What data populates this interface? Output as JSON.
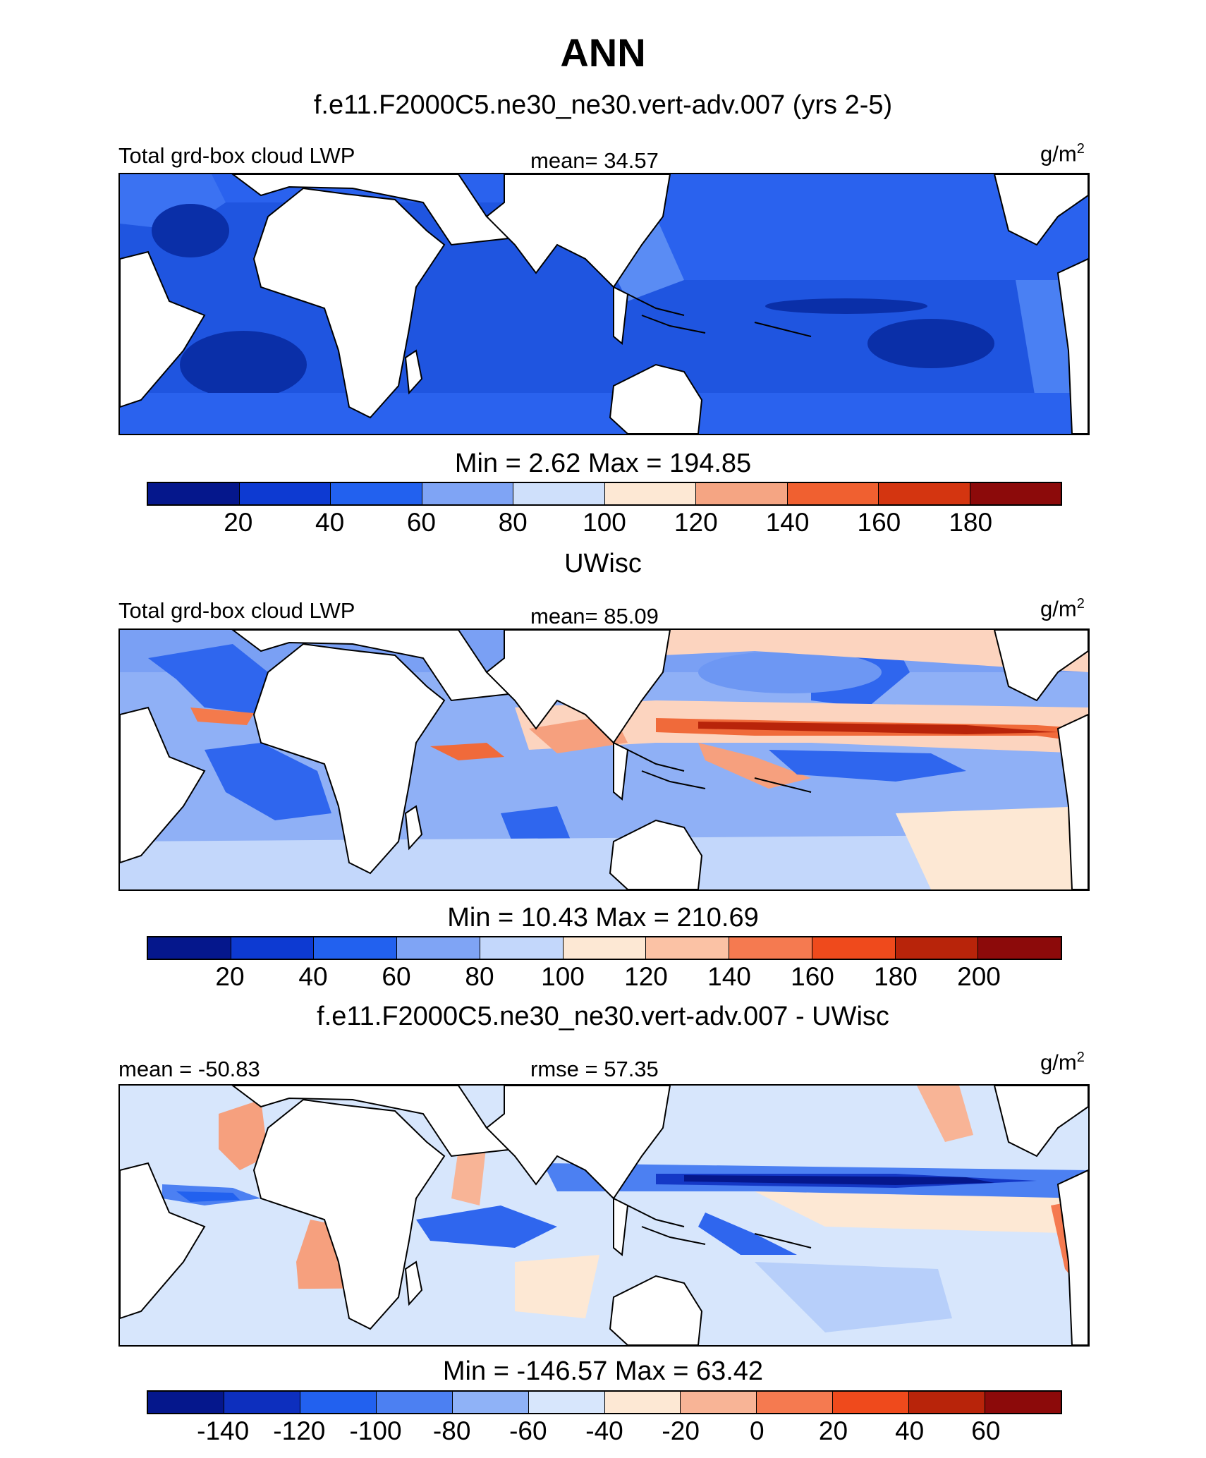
{
  "chart_data": {
    "type": "heatmap",
    "title": "ANN",
    "panels": [
      {
        "title": "f.e11.F2000C5.ne30_ne30.vert-adv.007 (yrs 2-5)",
        "left_label": "Total grd-box cloud LWP",
        "center_label": "mean=  34.57",
        "units": "g/m",
        "units_sup": "2",
        "minmax": "Min =   2.62 Max = 194.85",
        "levels": [
          "20",
          "40",
          "60",
          "80",
          "100",
          "120",
          "140",
          "160",
          "180"
        ],
        "colors": [
          "#05178c",
          "#0d3ad2",
          "#2261ef",
          "#7fa4f5",
          "#cfe0fb",
          "#fde8d4",
          "#f5a583",
          "#f06030",
          "#d43510",
          "#8c0a0a"
        ]
      },
      {
        "title": "UWisc",
        "left_label": "Total grd-box cloud LWP",
        "center_label": "mean=  85.09",
        "units": "g/m",
        "units_sup": "2",
        "minmax": "Min =  10.43 Max = 210.69",
        "levels": [
          "20",
          "40",
          "60",
          "80",
          "100",
          "120",
          "140",
          "160",
          "180",
          "200"
        ],
        "colors": [
          "#05178c",
          "#0d3ad2",
          "#2261ef",
          "#7fa4f5",
          "#c3d7fb",
          "#fde8d4",
          "#fbc2a5",
          "#f57a50",
          "#ef4a1c",
          "#b8240a",
          "#8c0a0a"
        ]
      },
      {
        "title": "f.e11.F2000C5.ne30_ne30.vert-adv.007 - UWisc",
        "left_label": "mean = -50.83",
        "center_label": "rmse =  57.35",
        "units": "g/m",
        "units_sup": "2",
        "minmax": "Min = -146.57 Max =  63.42",
        "levels": [
          "-140",
          "-120",
          "-100",
          "-80",
          "-60",
          "-40",
          "-20",
          "0",
          "20",
          "40",
          "60"
        ],
        "colors": [
          "#05178c",
          "#0d2fbe",
          "#2261ef",
          "#4c80f2",
          "#8fb2f7",
          "#d7e6fc",
          "#fde8d4",
          "#f8b496",
          "#f57a50",
          "#ef4a1c",
          "#b8240a",
          "#8c0a0a"
        ]
      }
    ]
  }
}
